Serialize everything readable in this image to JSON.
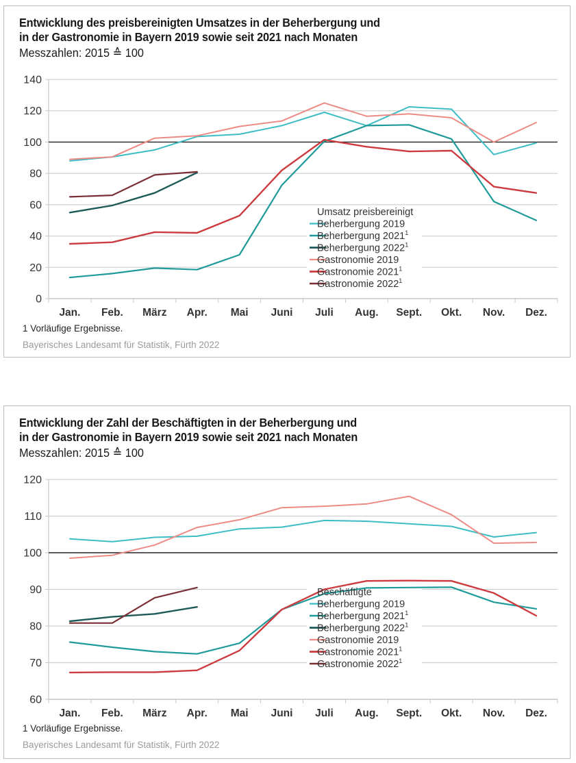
{
  "charts": [
    {
      "title_line1": "Entwicklung des preisbereinigten Umsatzes in der Beherbergung und",
      "title_line2": "in der Gastronomie in Bayern 2019 sowie seit 2021 nach Monaten",
      "subtitle": "Messzahlen: 2015 ≙ 100",
      "footnote": "1  Vorläufige Ergebnisse.",
      "source": "Bayerisches Landesamt für Statistik, Fürth 2022"
    },
    {
      "title_line1": "Entwicklung der Zahl der Beschäftigten in der Beherbergung und",
      "title_line2": "in der Gastronomie in Bayern 2019 sowie seit 2021 nach Monaten",
      "subtitle": "Messzahlen: 2015 ≙ 100",
      "footnote": "1  Vorläufige Ergebnisse.",
      "source": "Bayerisches Landesamt für Statistik, Fürth 2022"
    }
  ],
  "chart_data": [
    {
      "type": "line",
      "title": "Entwicklung des preisbereinigten Umsatzes in der Beherbergung und in der Gastronomie in Bayern 2019 sowie seit 2021 nach Monaten",
      "subtitle": "Messzahlen: 2015 ≙ 100",
      "xlabel": "",
      "ylabel": "",
      "categories": [
        "Jan.",
        "Feb.",
        "März",
        "Apr.",
        "Mai",
        "Juni",
        "Juli",
        "Aug.",
        "Sept.",
        "Okt.",
        "Nov.",
        "Dez."
      ],
      "ylim": [
        0,
        140
      ],
      "yticks": [
        0,
        20,
        40,
        60,
        80,
        100,
        120,
        140
      ],
      "reference_line": 100,
      "grid": true,
      "legend_title": "Umsatz preisbereinigt",
      "legend_position": "center-right",
      "series": [
        {
          "name": "Beherbergung 2019",
          "sup": "",
          "color": "#3cbcc4",
          "values": [
            88,
            90.5,
            95,
            103.5,
            105,
            110.5,
            119,
            110.5,
            122.5,
            121,
            92,
            99.5
          ]
        },
        {
          "name": "Beherbergung 2021",
          "sup": "1",
          "color": "#1f9a9a",
          "values": [
            13.5,
            16,
            19.5,
            18.5,
            28,
            72.5,
            100.5,
            110.5,
            111,
            102,
            62,
            50
          ]
        },
        {
          "name": "Beherbergung 2022",
          "sup": "1",
          "color": "#1d5a58",
          "values": [
            55,
            59.5,
            67.5,
            80.5
          ]
        },
        {
          "name": "Gastronomie 2019",
          "sup": "",
          "color": "#ee8a84",
          "values": [
            89,
            90.5,
            102.5,
            104,
            110,
            113.5,
            125,
            116.5,
            118,
            115.5,
            100,
            112.5
          ]
        },
        {
          "name": "Gastronomie 2021",
          "sup": "1",
          "color": "#cc3b3f",
          "values": [
            35,
            36,
            42.5,
            42,
            53,
            82,
            101.5,
            97,
            94,
            94.5,
            71.5,
            67.5
          ]
        },
        {
          "name": "Gastronomie 2022",
          "sup": "1",
          "color": "#7a2f34",
          "values": [
            65,
            66,
            79,
            81
          ]
        }
      ]
    },
    {
      "type": "line",
      "title": "Entwicklung der Zahl der Beschäftigten in der Beherbergung und in der Gastronomie in Bayern 2019 sowie seit 2021 nach Monaten",
      "subtitle": "Messzahlen: 2015 ≙ 100",
      "xlabel": "",
      "ylabel": "",
      "categories": [
        "Jan.",
        "Feb.",
        "März",
        "Apr.",
        "Mai",
        "Juni",
        "Juli",
        "Aug.",
        "Sept.",
        "Okt.",
        "Nov.",
        "Dez."
      ],
      "ylim": [
        60,
        120
      ],
      "yticks": [
        60,
        70,
        80,
        90,
        100,
        110,
        120
      ],
      "reference_line": 100,
      "grid": true,
      "legend_title": "Beschäftigte",
      "legend_position": "bottom-center",
      "series": [
        {
          "name": "Beherbergung 2019",
          "sup": "",
          "color": "#3cbcc4",
          "values": [
            103.8,
            103,
            104.2,
            104.5,
            106.5,
            107,
            108.8,
            108.6,
            107.9,
            107.2,
            104.3,
            105.5
          ]
        },
        {
          "name": "Beherbergung 2021",
          "sup": "1",
          "color": "#1f9a9a",
          "values": [
            75.6,
            74.2,
            73,
            72.4,
            75.3,
            84.5,
            88.8,
            90.4,
            90.5,
            90.6,
            86.5,
            84.7
          ]
        },
        {
          "name": "Beherbergung 2022",
          "sup": "1",
          "color": "#1d5a58",
          "values": [
            81.3,
            82.5,
            83.3,
            85.2
          ]
        },
        {
          "name": "Gastronomie 2019",
          "sup": "",
          "color": "#ee8a84",
          "values": [
            98.5,
            99.3,
            102.1,
            106.9,
            109,
            112.3,
            112.7,
            113.3,
            115.4,
            110.4,
            102.6,
            102.8
          ]
        },
        {
          "name": "Gastronomie 2021",
          "sup": "1",
          "color": "#cc3b3f",
          "values": [
            67.3,
            67.4,
            67.4,
            67.9,
            73.3,
            84.5,
            90,
            92.3,
            92.4,
            92.3,
            89,
            82.8
          ]
        },
        {
          "name": "Gastronomie 2022",
          "sup": "1",
          "color": "#7a2f34",
          "values": [
            80.8,
            80.8,
            87.7,
            90.5
          ]
        }
      ]
    }
  ]
}
